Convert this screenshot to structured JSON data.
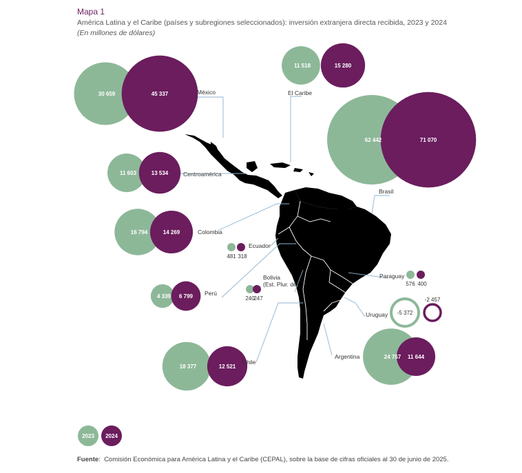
{
  "header": {
    "title": "Mapa 1",
    "subtitle": "América Latina y el Caribe (países y subregiones seleccionados): inversión extranjera directa recibida, 2023 y 2024",
    "units": "(En millones de dólares)"
  },
  "colors": {
    "y2023": "#8db898",
    "y2024": "#6b1d5e",
    "land": "#7b8fad",
    "land_light": "#c4ccd6",
    "leader": "#8fb3cf"
  },
  "legend": {
    "y2023": "2023",
    "y2024": "2024"
  },
  "source": {
    "label": "Fuente",
    "text": "Comisión Económica para América Latina y el Caribe (CEPAL), sobre la base de cifras oficiales al 30 de junio de 2025."
  },
  "chart_data": {
    "type": "proportional-symbol-map",
    "series": [
      {
        "name": "2023"
      },
      {
        "name": "2024"
      }
    ],
    "regions": [
      {
        "name": "México",
        "v2023": 30659,
        "v2023_label": "30 659",
        "v2024": 45337,
        "v2024_label": "45 337"
      },
      {
        "name": "El Caribe",
        "v2023": 11518,
        "v2023_label": "11 518",
        "v2024": 15280,
        "v2024_label": "15 280"
      },
      {
        "name": "Brasil",
        "v2023": 62442,
        "v2023_label": "62 442",
        "v2024": 71070,
        "v2024_label": "71 070"
      },
      {
        "name": "Centroamérica",
        "v2023": 11603,
        "v2023_label": "11 603",
        "v2024": 13534,
        "v2024_label": "13 534"
      },
      {
        "name": "Colombia",
        "v2023": 16794,
        "v2023_label": "16 794",
        "v2024": 14269,
        "v2024_label": "14 269"
      },
      {
        "name": "Ecuador",
        "v2023": 481,
        "v2023_label": "481",
        "v2024": 318,
        "v2024_label": "318"
      },
      {
        "name": "Perú",
        "v2023": 4339,
        "v2023_label": "4 339",
        "v2024": 6799,
        "v2024_label": "6 799"
      },
      {
        "name": "Bolivia (Est. Plur. de)",
        "name_line1": "Bolivia",
        "name_line2": "(Est. Plur. de)",
        "v2023": 240,
        "v2023_label": "240",
        "v2024": 247,
        "v2024_label": "247"
      },
      {
        "name": "Paraguay",
        "v2023": 576,
        "v2023_label": "576",
        "v2024": 400,
        "v2024_label": "400"
      },
      {
        "name": "Uruguay",
        "v2023": -5372,
        "v2023_label": "-5 372",
        "v2024": -2457,
        "v2024_label": "-2 457"
      },
      {
        "name": "Chile",
        "v2023": 18377,
        "v2023_label": "18 377",
        "v2024": 12521,
        "v2024_label": "12 521"
      },
      {
        "name": "Argentina",
        "v2023": 24757,
        "v2023_label": "24 757",
        "v2024": 11644,
        "v2024_label": "11 644"
      }
    ]
  }
}
